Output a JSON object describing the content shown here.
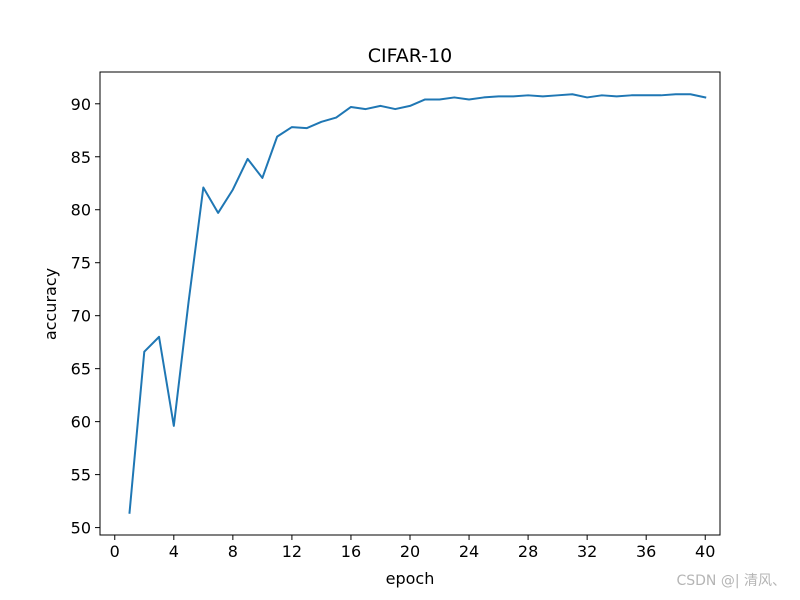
{
  "chart_data": {
    "type": "line",
    "title": "CIFAR-10",
    "xlabel": "epoch",
    "ylabel": "accuracy",
    "xlim": [
      -1,
      41
    ],
    "ylim": [
      49.3,
      93.0
    ],
    "xticks": [
      0,
      4,
      8,
      12,
      16,
      20,
      24,
      28,
      32,
      36,
      40
    ],
    "yticks": [
      50,
      55,
      60,
      65,
      70,
      75,
      80,
      85,
      90
    ],
    "grid": false,
    "line_color": "#1f77b4",
    "series": [
      {
        "x": [
          1,
          2,
          3,
          4,
          5,
          6,
          7,
          8,
          9,
          10,
          11,
          12,
          13,
          14,
          15,
          16,
          17,
          18,
          19,
          20,
          21,
          22,
          23,
          24,
          25,
          26,
          27,
          28,
          29,
          30,
          31,
          32,
          33,
          34,
          35,
          36,
          37,
          38,
          39,
          40
        ],
        "values": [
          51.4,
          66.6,
          68.0,
          59.6,
          71.3,
          82.1,
          79.7,
          81.9,
          84.8,
          83.0,
          86.9,
          87.8,
          87.7,
          88.3,
          88.7,
          89.7,
          89.5,
          89.8,
          89.5,
          89.8,
          90.4,
          90.4,
          90.6,
          90.4,
          90.6,
          90.7,
          90.7,
          90.8,
          90.7,
          90.8,
          90.9,
          90.6,
          90.8,
          90.7,
          90.8,
          90.8,
          90.8,
          90.9,
          90.9,
          90.6
        ]
      }
    ]
  },
  "watermark": "CSDN @| 清风、"
}
